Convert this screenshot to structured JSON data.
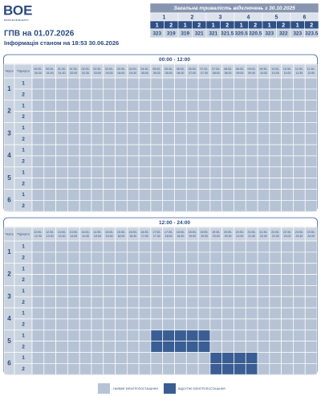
{
  "logo": {
    "text": "ВОЕ",
    "subtext": "ВОЛИНЬОБЛЕНЕРГО"
  },
  "summary": {
    "title": "Загальна тривалість відключень з 30.10.2025",
    "queues": [
      {
        "label": "1",
        "subs": [
          {
            "label": "1",
            "value": 323
          },
          {
            "label": "2",
            "value": 319
          }
        ]
      },
      {
        "label": "2",
        "subs": [
          {
            "label": "1",
            "value": 319
          },
          {
            "label": "2",
            "value": 321
          }
        ]
      },
      {
        "label": "3",
        "subs": [
          {
            "label": "1",
            "value": 321
          },
          {
            "label": "2",
            "value": 321.5
          }
        ]
      },
      {
        "label": "4",
        "subs": [
          {
            "label": "1",
            "value": 320.5
          },
          {
            "label": "2",
            "value": 320.5
          }
        ]
      },
      {
        "label": "5",
        "subs": [
          {
            "label": "1",
            "value": 323
          },
          {
            "label": "2",
            "value": 322
          }
        ]
      },
      {
        "label": "6",
        "subs": [
          {
            "label": "1",
            "value": 323
          },
          {
            "label": "2",
            "value": 323.5
          }
        ]
      }
    ]
  },
  "header": {
    "title": "ГПВ на 01.07.2026",
    "info": "Інформація станом на 18:53 30.06.2026"
  },
  "tables": [
    {
      "period": "00:00 - 12:00",
      "col_queue": "Черга",
      "col_sub": "Підчерга",
      "slots": [
        [
          "00:00-",
          "00:30"
        ],
        [
          "00:30-",
          "01:00"
        ],
        [
          "01:00-",
          "01:30"
        ],
        [
          "01:30-",
          "02:00"
        ],
        [
          "02:00-",
          "02:30"
        ],
        [
          "02:30-",
          "03:00"
        ],
        [
          "03:00-",
          "03:30"
        ],
        [
          "03:30-",
          "04:00"
        ],
        [
          "04:00-",
          "04:30"
        ],
        [
          "04:30-",
          "05:00"
        ],
        [
          "05:00-",
          "05:30"
        ],
        [
          "05:30-",
          "06:00"
        ],
        [
          "06:00-",
          "06:30"
        ],
        [
          "06:30-",
          "07:00"
        ],
        [
          "07:00-",
          "07:30"
        ],
        [
          "07:30-",
          "08:00"
        ],
        [
          "08:00-",
          "08:30"
        ],
        [
          "08:30-",
          "09:00"
        ],
        [
          "09:00-",
          "09:30"
        ],
        [
          "09:30-",
          "10:00"
        ],
        [
          "10:00-",
          "10:30"
        ],
        [
          "10:30-",
          "11:00"
        ],
        [
          "11:00-",
          "11:30"
        ],
        [
          "11:30-",
          "12:00"
        ]
      ],
      "rows": [
        {
          "queue": "1",
          "subs": [
            {
              "label": "1",
              "off": []
            },
            {
              "label": "2",
              "off": []
            }
          ]
        },
        {
          "queue": "2",
          "subs": [
            {
              "label": "1",
              "off": []
            },
            {
              "label": "2",
              "off": []
            }
          ]
        },
        {
          "queue": "3",
          "subs": [
            {
              "label": "1",
              "off": []
            },
            {
              "label": "2",
              "off": []
            }
          ]
        },
        {
          "queue": "4",
          "subs": [
            {
              "label": "1",
              "off": []
            },
            {
              "label": "2",
              "off": []
            }
          ]
        },
        {
          "queue": "5",
          "subs": [
            {
              "label": "1",
              "off": []
            },
            {
              "label": "2",
              "off": []
            }
          ]
        },
        {
          "queue": "6",
          "subs": [
            {
              "label": "1",
              "off": []
            },
            {
              "label": "2",
              "off": []
            }
          ]
        }
      ]
    },
    {
      "period": "12:00 - 24:00",
      "col_queue": "Черга",
      "col_sub": "Підчерга",
      "slots": [
        [
          "12:00-",
          "12:30"
        ],
        [
          "12:30-",
          "13:00"
        ],
        [
          "13:00-",
          "13:30"
        ],
        [
          "13:30-",
          "14:00"
        ],
        [
          "14:00-",
          "14:30"
        ],
        [
          "14:30-",
          "15:00"
        ],
        [
          "15:00-",
          "15:30"
        ],
        [
          "15:30-",
          "16:00"
        ],
        [
          "16:00-",
          "16:30"
        ],
        [
          "16:30-",
          "17:00"
        ],
        [
          "17:00-",
          "17:30"
        ],
        [
          "17:30-",
          "18:00"
        ],
        [
          "18:00-",
          "18:30"
        ],
        [
          "18:30-",
          "19:00"
        ],
        [
          "19:00-",
          "19:30"
        ],
        [
          "19:30-",
          "20:00"
        ],
        [
          "20:00-",
          "20:30"
        ],
        [
          "20:30-",
          "21:00"
        ],
        [
          "21:00-",
          "21:30"
        ],
        [
          "21:30-",
          "22:00"
        ],
        [
          "22:00-",
          "22:30"
        ],
        [
          "22:30-",
          "23:00"
        ],
        [
          "23:00-",
          "23:30"
        ],
        [
          "23:30-",
          "24:00"
        ]
      ],
      "rows": [
        {
          "queue": "1",
          "subs": [
            {
              "label": "1",
              "off": []
            },
            {
              "label": "2",
              "off": []
            }
          ]
        },
        {
          "queue": "2",
          "subs": [
            {
              "label": "1",
              "off": []
            },
            {
              "label": "2",
              "off": []
            }
          ]
        },
        {
          "queue": "3",
          "subs": [
            {
              "label": "1",
              "off": []
            },
            {
              "label": "2",
              "off": []
            }
          ]
        },
        {
          "queue": "4",
          "subs": [
            {
              "label": "1",
              "off": []
            },
            {
              "label": "2",
              "off": []
            }
          ]
        },
        {
          "queue": "5",
          "subs": [
            {
              "label": "1",
              "off": [
                10,
                11,
                12,
                13,
                14
              ]
            },
            {
              "label": "2",
              "off": [
                10,
                11,
                12,
                13,
                14
              ]
            }
          ]
        },
        {
          "queue": "6",
          "subs": [
            {
              "label": "1",
              "off": [
                15,
                16,
                17,
                18
              ]
            },
            {
              "label": "2",
              "off": [
                15,
                16,
                17,
                18
              ]
            }
          ]
        }
      ]
    }
  ],
  "legend": [
    {
      "label": "- НАЯВНЕ ЕЛЕКТРОПОСТАЧАННЯ",
      "color": "#b6c3d5"
    },
    {
      "label": "- ВІДСУТНЄ ЕЛЕКТРОПОСТАЧАННЯ",
      "color": "#3a5e93"
    }
  ]
}
